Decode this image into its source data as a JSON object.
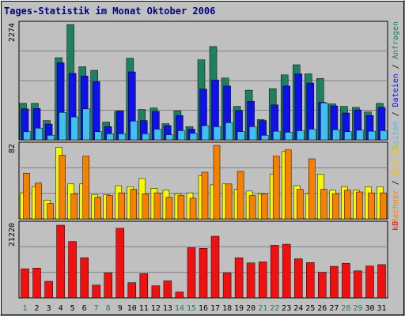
{
  "chart_data": {
    "type": "bar",
    "title": "Tages-Statistik im Monat Oktober 2006",
    "categories": [
      "1",
      "2",
      "3",
      "4",
      "5",
      "6",
      "7",
      "8",
      "9",
      "10",
      "11",
      "12",
      "13",
      "14",
      "15",
      "16",
      "17",
      "18",
      "19",
      "20",
      "21",
      "22",
      "23",
      "24",
      "25",
      "26",
      "27",
      "28",
      "29",
      "30",
      "31"
    ],
    "weekend_days": [
      "1",
      "7",
      "8",
      "14",
      "15",
      "21",
      "22",
      "28",
      "29"
    ],
    "panels": [
      {
        "id": "top",
        "ymax_label": "2274",
        "ylim": [
          0,
          2274
        ],
        "right_labels": [
          "Seiten",
          "Dateien",
          "Anfragen"
        ],
        "series": [
          {
            "name": "Anfragen",
            "color": "#1e8060",
            "values": [
              720,
              720,
              380,
              1620,
              2274,
              1440,
              1370,
              350,
              560,
              1610,
              600,
              630,
              320,
              570,
              260,
              1580,
              1840,
              1220,
              660,
              980,
              400,
              1010,
              1280,
              1480,
              1300,
              1210,
              710,
              660,
              640,
              550,
              720
            ]
          },
          {
            "name": "Dateien",
            "color": "#1010e8",
            "values": [
              610,
              620,
              310,
              1520,
              1310,
              1260,
              1150,
              260,
              570,
              1340,
              380,
              560,
              280,
              480,
              210,
              1000,
              1180,
              1060,
              580,
              760,
              380,
              690,
              1060,
              1300,
              1120,
              740,
              670,
              530,
              590,
              480,
              640
            ]
          },
          {
            "name": "Seiten",
            "color": "#40c0f0",
            "values": [
              160,
              230,
              90,
              540,
              450,
              610,
              160,
              120,
              120,
              370,
              120,
              210,
              100,
              180,
              130,
              280,
              260,
              340,
              160,
              260,
              90,
              170,
              150,
              180,
              210,
              730,
              200,
              160,
              190,
              170,
              180
            ]
          }
        ]
      },
      {
        "id": "middle",
        "ymax_label": "82",
        "ylim": [
          0,
          82
        ],
        "right_labels": [
          "Rechner",
          "Besuche"
        ],
        "series": [
          {
            "name": "Besuche",
            "color": "#f8f800",
            "values": [
              29,
              36,
              21,
              80,
              39,
              39,
              27,
              27,
              37,
              36,
              45,
              34,
              32,
              28,
              29,
              48,
              38,
              39,
              33,
              31,
              28,
              50,
              75,
              37,
              28,
              50,
              32,
              36,
              32,
              36,
              36
            ]
          },
          {
            "name": "Rechner",
            "color": "#f88000",
            "values": [
              51,
              40,
              17,
              71,
              28,
              70,
              24,
              26,
              29,
              33,
              28,
              29,
              24,
              26,
              23,
              52,
              82,
              39,
              53,
              26,
              28,
              70,
              77,
              33,
              67,
              33,
              28,
              32,
              30,
              29,
              29
            ]
          }
        ]
      },
      {
        "id": "bottom",
        "ymax_label": "21220",
        "ylim": [
          0,
          21220
        ],
        "right_labels": [
          "kB"
        ],
        "series": [
          {
            "name": "kB",
            "color": "#f01010",
            "values": [
              8400,
              8600,
              4800,
              21000,
              16300,
              11600,
              3700,
              7200,
              20100,
              4400,
              7000,
              3500,
              4900,
              1700,
              14500,
              14300,
              17800,
              7200,
              11600,
              10100,
              10400,
              15200,
              15500,
              11300,
              10200,
              7400,
              9100,
              10000,
              7800,
              9200,
              9600
            ]
          }
        ]
      }
    ]
  }
}
